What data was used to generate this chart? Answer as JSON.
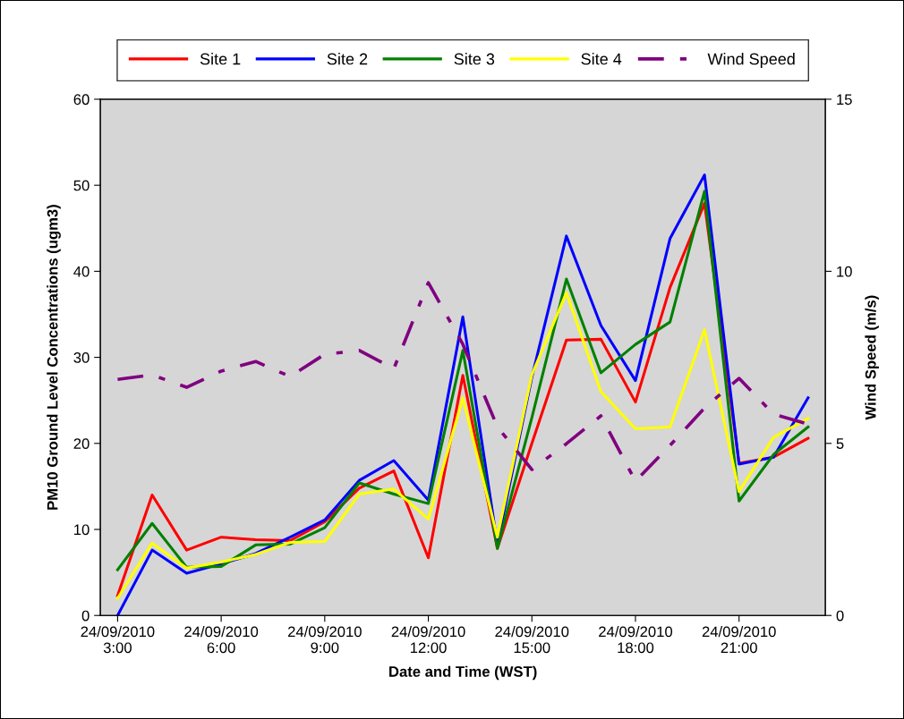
{
  "chart_data": {
    "type": "line",
    "xlabel": "Date and Time (WST)",
    "ylabel": "PM10 Ground Level Concentrations (ugm3)",
    "y2label": "Wind Speed (m/s)",
    "categories": [
      "24/09/2010\n3:00",
      null,
      null,
      "24/09/2010\n6:00",
      null,
      null,
      "24/09/2010\n9:00",
      null,
      null,
      "24/09/2010\n12:00",
      null,
      null,
      "24/09/2010\n15:00",
      null,
      null,
      "24/09/2010\n18:00",
      null,
      null,
      "24/09/2010\n21:00",
      null,
      null
    ],
    "ylim": [
      0,
      60
    ],
    "yticks": [
      0,
      10,
      20,
      30,
      40,
      50,
      60
    ],
    "y2lim": [
      0,
      15
    ],
    "y2ticks": [
      0,
      5,
      10,
      15
    ],
    "legend": "top",
    "grid": false,
    "series": [
      {
        "name": "Site 1",
        "color": "#ff0000",
        "values": [
          2.3,
          14.0,
          7.6,
          9.1,
          8.8,
          8.7,
          10.9,
          14.8,
          16.8,
          6.7,
          27.9,
          7.8,
          20.0,
          32.0,
          32.1,
          24.8,
          38.1,
          47.9,
          17.7,
          18.4,
          20.6
        ]
      },
      {
        "name": "Site 2",
        "color": "#0000ff",
        "values": [
          0,
          7.6,
          4.9,
          6.0,
          7.2,
          9.1,
          11.1,
          15.7,
          18.0,
          13.4,
          34.7,
          8.3,
          27.7,
          44.1,
          33.7,
          27.3,
          43.8,
          51.2,
          17.6,
          18.4,
          25.3
        ]
      },
      {
        "name": "Site 3",
        "color": "#008000",
        "values": [
          5.3,
          10.7,
          5.6,
          5.7,
          8.2,
          8.3,
          10.2,
          15.4,
          14.1,
          13.0,
          30.8,
          7.8,
          23.0,
          39.1,
          28.2,
          31.5,
          34.1,
          49.3,
          13.3,
          18.7,
          21.9
        ]
      },
      {
        "name": "Site 4",
        "color": "#ffff00",
        "values": [
          2.0,
          8.4,
          5.5,
          6.2,
          7.1,
          8.5,
          8.6,
          14.1,
          14.7,
          11.2,
          25.3,
          9.1,
          28.0,
          37.5,
          26.0,
          21.7,
          21.9,
          33.2,
          14.4,
          20.7,
          22.9
        ]
      },
      {
        "name": "Wind Speed",
        "color": "#800080",
        "axis": "y2",
        "line_style": "dashed",
        "values": [
          6.86,
          6.99,
          6.63,
          7.1,
          7.38,
          6.94,
          7.59,
          7.7,
          7.17,
          9.67,
          7.88,
          5.48,
          4.24,
          4.99,
          5.8,
          3.9,
          4.94,
          6.03,
          6.89,
          5.85,
          5.56
        ]
      }
    ]
  }
}
